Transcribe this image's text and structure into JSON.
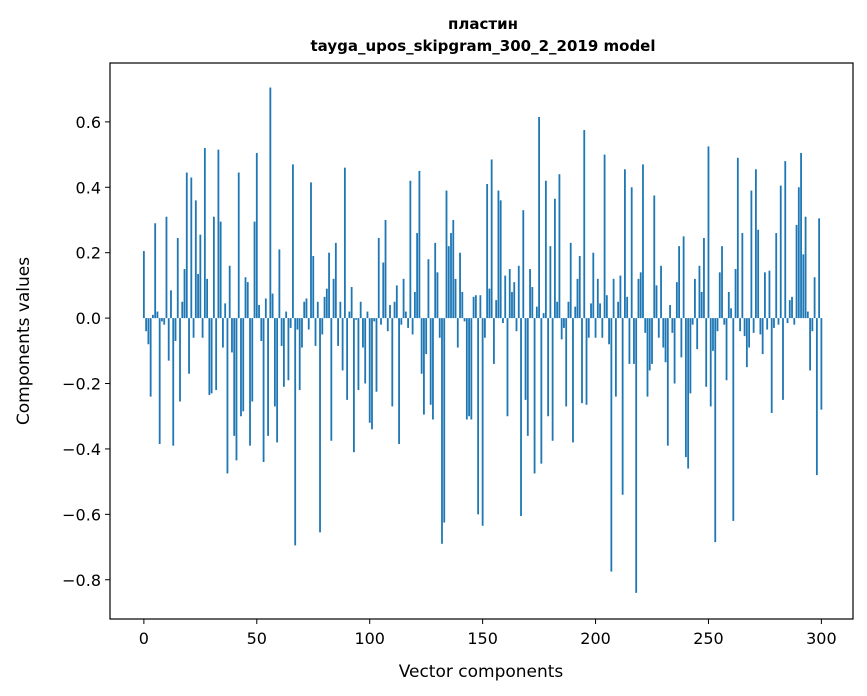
{
  "chart_data": {
    "type": "bar",
    "title_line1": "пластин",
    "title_line2": "tayga_upos_skipgram_300_2_2019 model",
    "xlabel": "Vector components",
    "ylabel": "Components values",
    "xlim": [
      -15,
      314
    ],
    "ylim": [
      -0.92,
      0.78
    ],
    "xticks": [
      0,
      50,
      100,
      150,
      200,
      250,
      300
    ],
    "xtick_labels": [
      "0",
      "50",
      "100",
      "150",
      "200",
      "250",
      "300"
    ],
    "yticks": [
      0.6,
      0.4,
      0.2,
      0.0,
      -0.2,
      -0.4,
      -0.6,
      -0.8
    ],
    "ytick_labels": [
      "0.6",
      "0.4",
      "0.2",
      "0.0",
      "−0.2",
      "−0.4",
      "−0.6",
      "−0.8"
    ],
    "bar_color": "#1f77b4",
    "values": [
      0.205,
      -0.04,
      -0.08,
      -0.24,
      0.01,
      0.29,
      0.02,
      -0.385,
      -0.01,
      -0.02,
      0.31,
      -0.13,
      0.085,
      -0.39,
      -0.07,
      0.245,
      -0.255,
      0.05,
      0.15,
      0.445,
      -0.17,
      0.43,
      -0.06,
      0.36,
      0.135,
      0.255,
      -0.06,
      0.52,
      0.12,
      -0.235,
      -0.23,
      0.31,
      -0.22,
      0.515,
      0.295,
      -0.09,
      0.045,
      -0.475,
      0.16,
      -0.105,
      -0.36,
      -0.435,
      0.445,
      -0.3,
      -0.285,
      0.125,
      0.11,
      -0.39,
      -0.255,
      0.295,
      0.505,
      0.04,
      -0.07,
      -0.44,
      0.06,
      -0.36,
      0.705,
      0.075,
      -0.27,
      -0.38,
      0.21,
      -0.085,
      -0.21,
      0.02,
      -0.19,
      -0.03,
      0.47,
      -0.695,
      -0.035,
      -0.22,
      -0.09,
      0.05,
      0.06,
      -0.035,
      0.415,
      0.19,
      -0.085,
      0.05,
      -0.655,
      -0.05,
      0.065,
      0.09,
      0.2,
      -0.375,
      0.12,
      0.23,
      -0.085,
      0.05,
      -0.16,
      0.46,
      -0.25,
      0.02,
      0.095,
      -0.41,
      -0.005,
      -0.22,
      0.05,
      -0.09,
      -0.2,
      0.02,
      -0.32,
      -0.34,
      -0.01,
      -0.225,
      0.245,
      -0.02,
      0.17,
      0.3,
      -0.04,
      0.04,
      -0.27,
      0.05,
      0.1,
      -0.385,
      -0.02,
      0.12,
      0.02,
      -0.03,
      0.42,
      -0.05,
      0.08,
      0.26,
      0.45,
      -0.17,
      -0.295,
      -0.11,
      0.18,
      -0.265,
      -0.31,
      0.23,
      0.14,
      -0.06,
      -0.69,
      -0.625,
      0.39,
      0.22,
      0.26,
      0.3,
      0.12,
      -0.09,
      0.2,
      0.08,
      -0.01,
      -0.31,
      -0.3,
      -0.31,
      0.065,
      0.07,
      -0.6,
      0.07,
      -0.635,
      -0.06,
      0.41,
      0.09,
      0.485,
      -0.14,
      0.055,
      0.39,
      0.36,
      -0.015,
      0.13,
      -0.3,
      0.15,
      0.08,
      0.11,
      -0.04,
      0.16,
      -0.605,
      0.33,
      -0.25,
      -0.36,
      0.15,
      0.095,
      -0.475,
      0.035,
      0.615,
      -0.445,
      0.015,
      0.42,
      -0.3,
      0.22,
      -0.375,
      0.365,
      0.05,
      0.44,
      -0.065,
      -0.03,
      -0.27,
      0.05,
      0.23,
      -0.38,
      0.035,
      0.12,
      0.19,
      -0.26,
      0.575,
      -0.265,
      -0.06,
      0.045,
      0.2,
      -0.06,
      0.12,
      0.045,
      -0.06,
      0.5,
      0.07,
      -0.08,
      -0.775,
      0.12,
      -0.24,
      0.05,
      0.13,
      -0.54,
      0.455,
      0.065,
      -0.14,
      0.4,
      -0.14,
      -0.84,
      0.12,
      0.14,
      0.47,
      -0.045,
      -0.24,
      -0.16,
      -0.14,
      0.375,
      0.1,
      -0.06,
      0.16,
      -0.09,
      -0.135,
      -0.39,
      0.04,
      -0.045,
      -0.2,
      0.11,
      0.22,
      -0.12,
      0.25,
      -0.425,
      -0.46,
      -0.23,
      -0.02,
      0.12,
      -0.095,
      0.16,
      0.08,
      0.245,
      -0.21,
      0.525,
      -0.27,
      -0.1,
      -0.685,
      -0.04,
      0.14,
      0.22,
      -0.02,
      -0.19,
      0.08,
      0.03,
      -0.62,
      0.15,
      0.49,
      -0.04,
      0.26,
      -0.055,
      -0.15,
      -0.09,
      0.39,
      -0.045,
      0.455,
      0.27,
      -0.05,
      -0.11,
      0.14,
      -0.035,
      0.145,
      -0.29,
      -0.03,
      0.26,
      -0.02,
      0.405,
      -0.25,
      0.48,
      -0.015,
      0.055,
      0.065,
      -0.02,
      0.285,
      0.4,
      0.505,
      0.195,
      0.31,
      0.02,
      -0.16,
      -0.04,
      0.125,
      -0.48,
      0.305,
      -0.28
    ]
  }
}
